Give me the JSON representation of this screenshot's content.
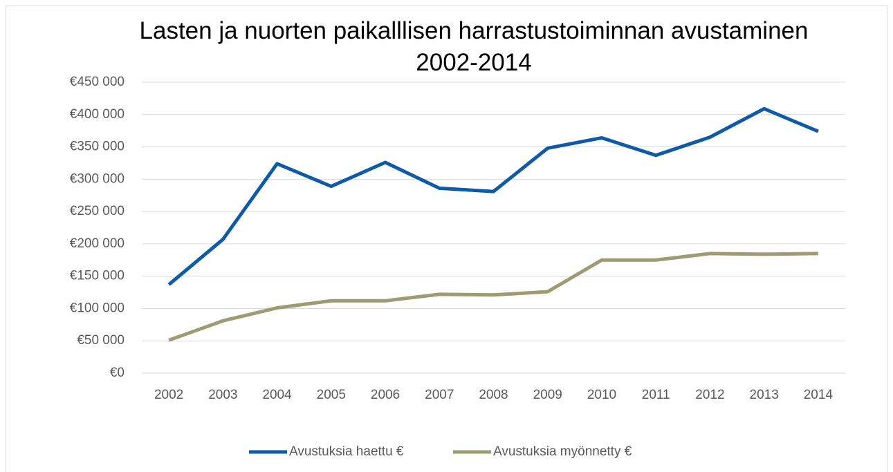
{
  "chart_data": {
    "type": "line",
    "title": "Lasten ja nuorten paikalllisen harrastustoiminnan avustaminen 2002-2014",
    "categories": [
      "2002",
      "2003",
      "2004",
      "2005",
      "2006",
      "2007",
      "2008",
      "2009",
      "2010",
      "2011",
      "2012",
      "2013",
      "2014"
    ],
    "series": [
      {
        "name": "Avustuksia haettu €",
        "color": "#0e5aa7",
        "values": [
          137000,
          207000,
          324000,
          289000,
          326000,
          286000,
          281000,
          348000,
          364000,
          337000,
          365000,
          409000,
          374000
        ]
      },
      {
        "name": "Avustuksia myönnetty €",
        "color": "#9c9b72",
        "values": [
          51000,
          81000,
          101000,
          112000,
          112000,
          122000,
          121000,
          126000,
          175000,
          175000,
          185000,
          184000,
          185000
        ]
      }
    ],
    "ylim": [
      0,
      450000
    ],
    "yticks": [
      {
        "value": 0,
        "label": "€0"
      },
      {
        "value": 50000,
        "label": "€50 000"
      },
      {
        "value": 100000,
        "label": "€100 000"
      },
      {
        "value": 150000,
        "label": "€150 000"
      },
      {
        "value": 200000,
        "label": "€200 000"
      },
      {
        "value": 250000,
        "label": "€250 000"
      },
      {
        "value": 300000,
        "label": "€300 000"
      },
      {
        "value": 350000,
        "label": "€350 000"
      },
      {
        "value": 400000,
        "label": "€400 000"
      },
      {
        "value": 450000,
        "label": "€450 000"
      }
    ],
    "grid": true,
    "legend": "bottom"
  }
}
